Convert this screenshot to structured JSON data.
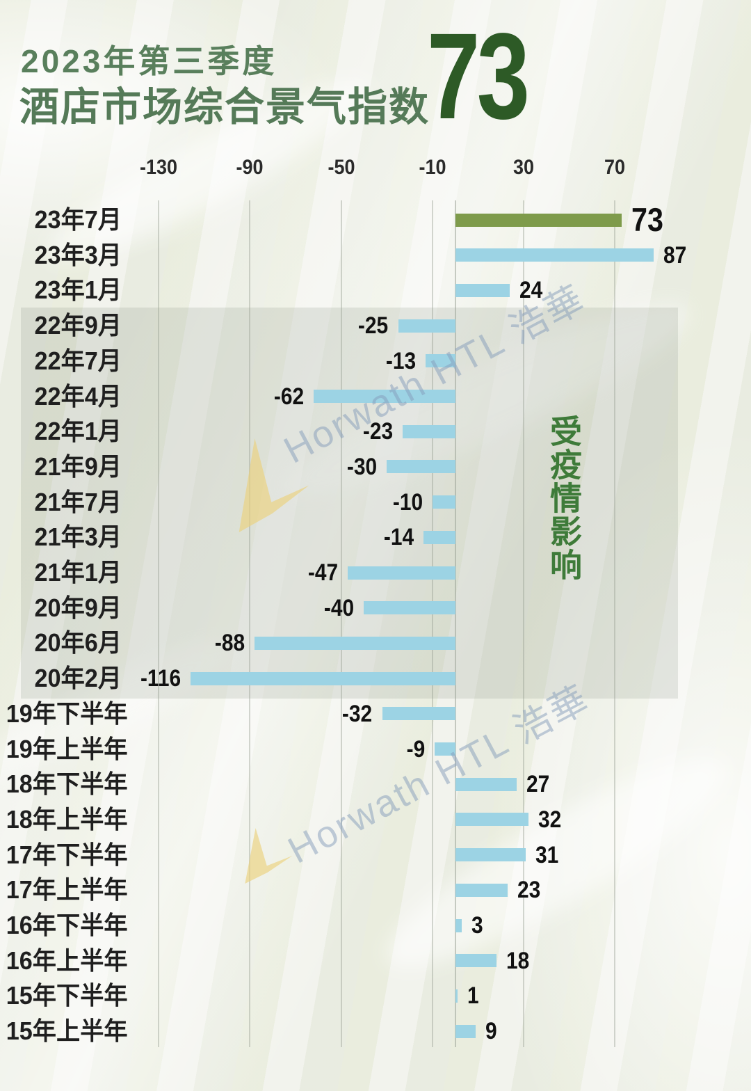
{
  "header": {
    "period": "2023年第三季度",
    "title": "酒店市场综合景气指数",
    "headline_value": "73"
  },
  "annotation": {
    "pandemic_label": "受疫情影响"
  },
  "watermark": {
    "text": "Horwath HTL 浩華"
  },
  "colors": {
    "bar_blue": "#9cd3e4",
    "bar_green": "#7e9b4b",
    "title_green": "#557a58",
    "headline_green": "#2d5a26",
    "annotation_green": "#3e7b39"
  },
  "chart_data": {
    "type": "bar",
    "orientation": "horizontal",
    "title": "酒店市场综合景气指数",
    "period": "2023年第三季度",
    "categories": [
      "23年7月",
      "23年3月",
      "23年1月",
      "22年9月",
      "22年7月",
      "22年4月",
      "22年1月",
      "21年9月",
      "21年7月",
      "21年3月",
      "21年1月",
      "20年9月",
      "20年6月",
      "20年2月",
      "19年下半年",
      "19年上半年",
      "18年下半年",
      "18年上半年",
      "17年下半年",
      "17年上半年",
      "16年下半年",
      "16年上半年",
      "15年下半年",
      "15年上半年"
    ],
    "values": [
      73,
      87,
      24,
      -25,
      -13,
      -62,
      -23,
      -30,
      -10,
      -14,
      -47,
      -40,
      -88,
      -116,
      -32,
      -9,
      27,
      32,
      31,
      23,
      3,
      18,
      1,
      9
    ],
    "highlight_index": 0,
    "x_ticks": [
      -130,
      -90,
      -50,
      -10,
      30,
      70
    ],
    "xlim": [
      -145,
      110
    ],
    "grid": true,
    "legend": "none",
    "pandemic_shaded_categories": [
      "22年9月",
      "22年7月",
      "22年4月",
      "22年1月",
      "21年9月",
      "21年7月",
      "21年3月",
      "21年1月",
      "20年9月",
      "20年6月",
      "20年2月"
    ],
    "annotation": "受疫情影响"
  }
}
